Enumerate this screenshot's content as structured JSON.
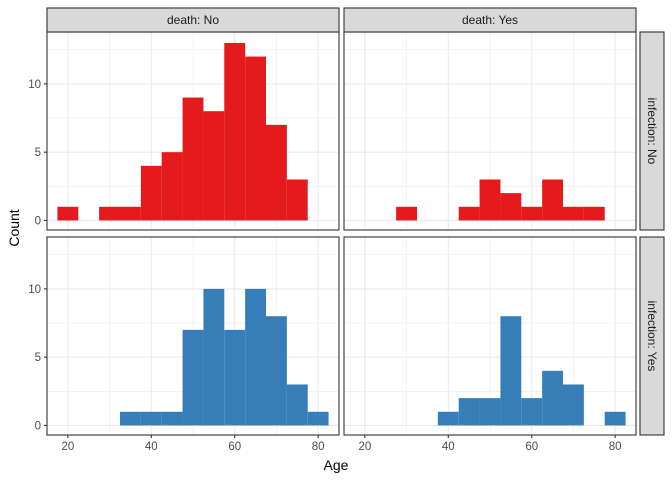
{
  "chart_data": {
    "type": "bar",
    "xlabel": "Age",
    "ylabel": "Count",
    "xlim": [
      15,
      85
    ],
    "ylim": [
      -0.7,
      13.8
    ],
    "x_ticks": [
      20,
      40,
      60,
      80
    ],
    "y_ticks": [
      0,
      5,
      10
    ],
    "bin_width": 5,
    "grid": true,
    "col_strips": [
      "death: No",
      "death: Yes"
    ],
    "row_strips": [
      "infection: No",
      "infection: Yes"
    ],
    "colors": {
      "infection: No": "#e41a1c",
      "infection: Yes": "#377eb8"
    },
    "panels": [
      {
        "row": 0,
        "col": 0,
        "bins": [
          [
            20,
            1
          ],
          [
            25,
            0
          ],
          [
            30,
            1
          ],
          [
            35,
            1
          ],
          [
            40,
            4
          ],
          [
            45,
            5
          ],
          [
            50,
            9
          ],
          [
            55,
            8
          ],
          [
            60,
            13
          ],
          [
            65,
            12
          ],
          [
            70,
            7
          ],
          [
            75,
            3
          ]
        ]
      },
      {
        "row": 0,
        "col": 1,
        "bins": [
          [
            30,
            1
          ],
          [
            35,
            0
          ],
          [
            40,
            0
          ],
          [
            45,
            1
          ],
          [
            50,
            3
          ],
          [
            55,
            2
          ],
          [
            60,
            1
          ],
          [
            65,
            3
          ],
          [
            70,
            1
          ],
          [
            75,
            1
          ]
        ]
      },
      {
        "row": 1,
        "col": 0,
        "bins": [
          [
            35,
            1
          ],
          [
            40,
            1
          ],
          [
            45,
            1
          ],
          [
            50,
            7
          ],
          [
            55,
            10
          ],
          [
            60,
            7
          ],
          [
            65,
            10
          ],
          [
            70,
            8
          ],
          [
            75,
            3
          ],
          [
            80,
            1
          ]
        ]
      },
      {
        "row": 1,
        "col": 1,
        "bins": [
          [
            40,
            1
          ],
          [
            45,
            2
          ],
          [
            50,
            2
          ],
          [
            55,
            8
          ],
          [
            60,
            2
          ],
          [
            65,
            4
          ],
          [
            70,
            3
          ],
          [
            75,
            0
          ],
          [
            80,
            1
          ]
        ]
      }
    ]
  }
}
